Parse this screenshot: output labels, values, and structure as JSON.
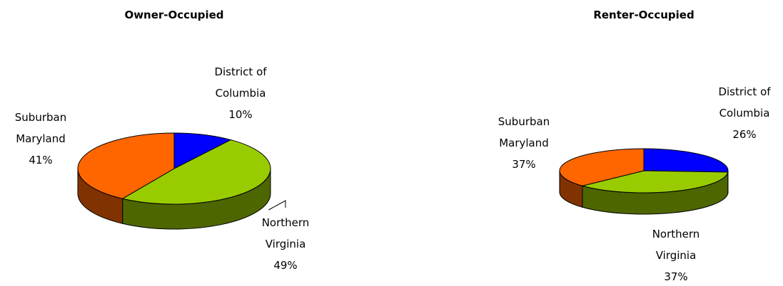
{
  "chart_data": [
    {
      "type": "pie",
      "title": "Owner-Occupied",
      "categories": [
        "District of Columbia",
        "Northern Virginia",
        "Suburban Maryland"
      ],
      "values": [
        10,
        49,
        41
      ],
      "value_labels": [
        "10%",
        "49%",
        "41%"
      ],
      "colors": [
        "#0000ff",
        "#99cc00",
        "#ff6600"
      ]
    },
    {
      "type": "pie",
      "title": "Renter-Occupied",
      "categories": [
        "District of Columbia",
        "Northern Virginia",
        "Suburban Maryland"
      ],
      "values": [
        26,
        37,
        37
      ],
      "value_labels": [
        "26%",
        "37%",
        "37%"
      ],
      "colors": [
        "#0000ff",
        "#99cc00",
        "#ff6600"
      ]
    }
  ]
}
